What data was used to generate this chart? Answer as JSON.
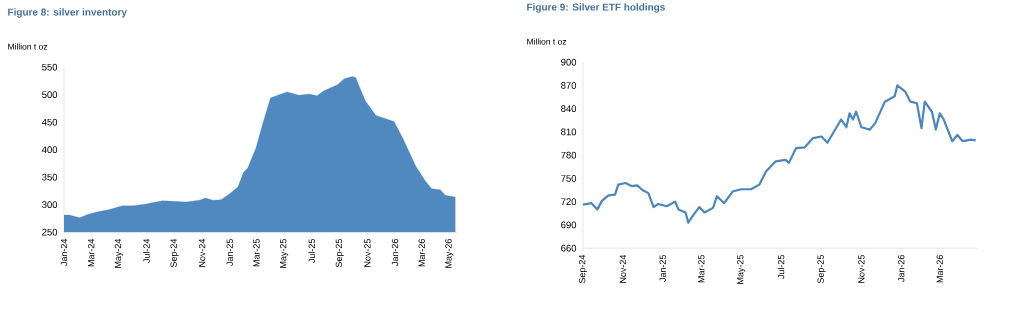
{
  "chart_data": [
    {
      "type": "area",
      "title": "Figure 8: silver inventory",
      "ylabel": "Million t oz",
      "color": "#4f89bf",
      "x": [
        "2024-01-01",
        "2024-01-13",
        "2024-02-05",
        "2024-02-19",
        "2024-03-11",
        "2024-04-10",
        "2024-05-09",
        "2024-06-01",
        "2024-07-01",
        "2024-07-11",
        "2024-08-06",
        "2024-08-28",
        "2024-09-27",
        "2024-10-26",
        "2024-11-08",
        "2024-11-25",
        "2024-12-13",
        "2025-01-01",
        "2025-01-19",
        "2025-01-31",
        "2025-02-10",
        "2025-02-28",
        "2025-03-14",
        "2025-04-01",
        "2025-04-20",
        "2025-05-08",
        "2025-06-03",
        "2025-06-25",
        "2025-07-13",
        "2025-07-28",
        "2025-08-27",
        "2025-09-11",
        "2025-09-29",
        "2025-10-06",
        "2025-10-28",
        "2025-11-20",
        "2025-12-30",
        "2026-01-18",
        "2026-02-16",
        "2026-03-09",
        "2026-03-23",
        "2026-04-11",
        "2026-04-22",
        "2026-05-14"
      ],
      "values": [
        281,
        281,
        276,
        281,
        286,
        291,
        298,
        298,
        301,
        303,
        307,
        306,
        305,
        308,
        312,
        308,
        309,
        320,
        332,
        358,
        367,
        403,
        445,
        494,
        500,
        505,
        499,
        501,
        498,
        507,
        518,
        529,
        533,
        531,
        488,
        462,
        451,
        421,
        370,
        343,
        329,
        327,
        317,
        314
      ],
      "xlim": [
        "2024-01-01",
        "2026-05-18"
      ],
      "xticks": [
        {
          "value": "2024-01-01",
          "label": "Jan-24"
        },
        {
          "value": "2024-03-01",
          "label": "Mar-24"
        },
        {
          "value": "2024-05-01",
          "label": "May-24"
        },
        {
          "value": "2024-07-01",
          "label": "Jul-24"
        },
        {
          "value": "2024-09-01",
          "label": "Sep-24"
        },
        {
          "value": "2024-11-01",
          "label": "Nov-24"
        },
        {
          "value": "2025-01-01",
          "label": "Jan-25"
        },
        {
          "value": "2025-03-01",
          "label": "Mar-25"
        },
        {
          "value": "2025-05-01",
          "label": "May-25"
        },
        {
          "value": "2025-07-01",
          "label": "Jul-25"
        },
        {
          "value": "2025-09-01",
          "label": "Sep-25"
        },
        {
          "value": "2025-11-01",
          "label": "Nov-25"
        },
        {
          "value": "2026-01-01",
          "label": "Jan-26"
        },
        {
          "value": "2026-03-01",
          "label": "Mar-26"
        },
        {
          "value": "2026-05-01",
          "label": "May-26"
        }
      ],
      "ylim": [
        250,
        550
      ],
      "yticks": [
        250,
        300,
        350,
        400,
        450,
        500,
        550
      ]
    },
    {
      "type": "line",
      "title": "Figure 9: Silver ETF holdings",
      "ylabel": "Million t oz",
      "color": "#4a86c0",
      "x": [
        "2024-09-01",
        "2024-09-14",
        "2024-09-23",
        "2024-09-30",
        "2024-10-10",
        "2024-10-20",
        "2024-10-25",
        "2024-11-05",
        "2024-11-15",
        "2024-11-23",
        "2024-12-01",
        "2024-12-10",
        "2024-12-18",
        "2024-12-25",
        "2025-01-07",
        "2025-01-20",
        "2025-01-25",
        "2025-02-05",
        "2025-02-09",
        "2025-02-17",
        "2025-02-26",
        "2025-03-06",
        "2025-03-19",
        "2025-03-25",
        "2025-04-05",
        "2025-04-18",
        "2025-05-01",
        "2025-05-16",
        "2025-05-29",
        "2025-06-08",
        "2025-06-23",
        "2025-07-08",
        "2025-07-13",
        "2025-07-24",
        "2025-08-06",
        "2025-08-19",
        "2025-09-01",
        "2025-09-10",
        "2025-10-01",
        "2025-10-09",
        "2025-10-14",
        "2025-10-19",
        "2025-10-24",
        "2025-11-01",
        "2025-11-14",
        "2025-11-22",
        "2025-12-07",
        "2025-12-22",
        "2025-12-26",
        "2026-01-07",
        "2026-01-15",
        "2026-01-25",
        "2026-02-01",
        "2026-02-06",
        "2026-02-17",
        "2026-02-23",
        "2026-03-01",
        "2026-03-07",
        "2026-03-20",
        "2026-03-28",
        "2026-04-05",
        "2026-04-18",
        "2026-04-25"
      ],
      "values": [
        716,
        718,
        710,
        721,
        728,
        729,
        742,
        744,
        740,
        741,
        735,
        731,
        713,
        717,
        714,
        720,
        710,
        706,
        693,
        703,
        713,
        706,
        712,
        727,
        718,
        733,
        736,
        736,
        742,
        759,
        772,
        774,
        770,
        789,
        790,
        802,
        804,
        796,
        826,
        816,
        834,
        826,
        836,
        816,
        813,
        821,
        849,
        856,
        870,
        862,
        849,
        847,
        815,
        849,
        836,
        813,
        834,
        826,
        798,
        806,
        798,
        800,
        799
      ],
      "xlim": [
        "2024-09-01",
        "2026-04-27"
      ],
      "xticks": [
        {
          "value": "2024-09-01",
          "label": "Sep-24"
        },
        {
          "value": "2024-11-01",
          "label": "Nov-24"
        },
        {
          "value": "2025-01-01",
          "label": "Jan-25"
        },
        {
          "value": "2025-03-01",
          "label": "Mar-25"
        },
        {
          "value": "2025-05-01",
          "label": "May-25"
        },
        {
          "value": "2025-07-01",
          "label": "Jul-25"
        },
        {
          "value": "2025-09-01",
          "label": "Sep-25"
        },
        {
          "value": "2025-11-01",
          "label": "Nov-25"
        },
        {
          "value": "2026-01-01",
          "label": "Jan-26"
        },
        {
          "value": "2026-03-01",
          "label": "Mar-26"
        }
      ],
      "ylim": [
        660,
        900
      ],
      "yticks": [
        660,
        690,
        720,
        750,
        780,
        810,
        840,
        870,
        900
      ]
    }
  ]
}
